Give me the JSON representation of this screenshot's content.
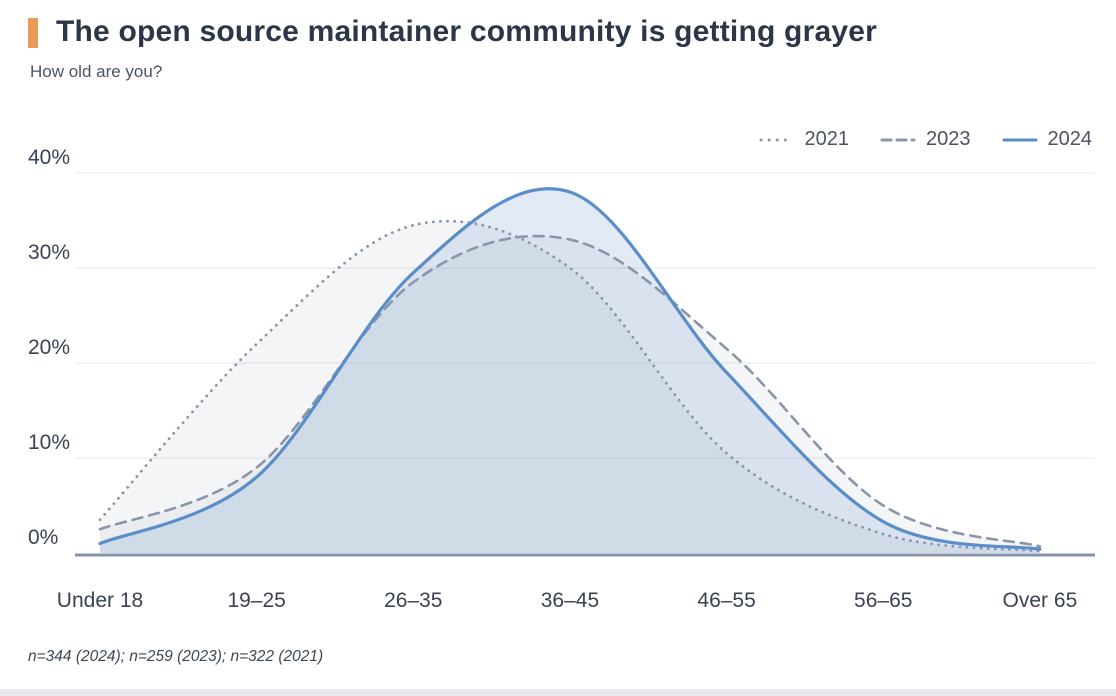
{
  "header": {
    "title": "The open source maintainer community is getting grayer",
    "subtitle": "How old are you?",
    "accent_color": "#ea9a59"
  },
  "chart_data": {
    "type": "line",
    "title": "The open source maintainer community is getting grayer",
    "subtitle": "How old are you?",
    "unit": "%",
    "categories": [
      "Under 18",
      "19–25",
      "26–35",
      "36–45",
      "46–55",
      "56–65",
      "Over 65"
    ],
    "series": [
      {
        "name": "2021",
        "style": "dotted",
        "color": "#8b95a9",
        "fill": "rgba(146,155,175,0.10)",
        "values": [
          3.5,
          22,
          34.5,
          30,
          10.5,
          2,
          0.2
        ]
      },
      {
        "name": "2023",
        "style": "dashed",
        "color": "#8b95a9",
        "fill": "rgba(146,155,175,0.10)",
        "values": [
          2.5,
          9,
          28.5,
          33,
          21.5,
          5,
          0.7
        ]
      },
      {
        "name": "2024",
        "style": "solid",
        "color": "#5b8ec9",
        "fill": "rgba(93,143,201,0.18)",
        "values": [
          1,
          8,
          29.5,
          38,
          19,
          3.3,
          0.4
        ]
      }
    ],
    "ylim": [
      0,
      40
    ],
    "y_ticks": [
      40,
      30,
      20,
      10,
      0
    ],
    "y_tick_labels": [
      "40%",
      "30%",
      "20%",
      "10%",
      "0%"
    ],
    "grid": true,
    "legend_position": "top-right",
    "baseline_color": "#8493a9",
    "gridline_color": "#e4e7eb",
    "tick_label_color": "#3a4254"
  },
  "footer": {
    "note": "n=344 (2024); n=259 (2023); n=322 (2021)"
  }
}
